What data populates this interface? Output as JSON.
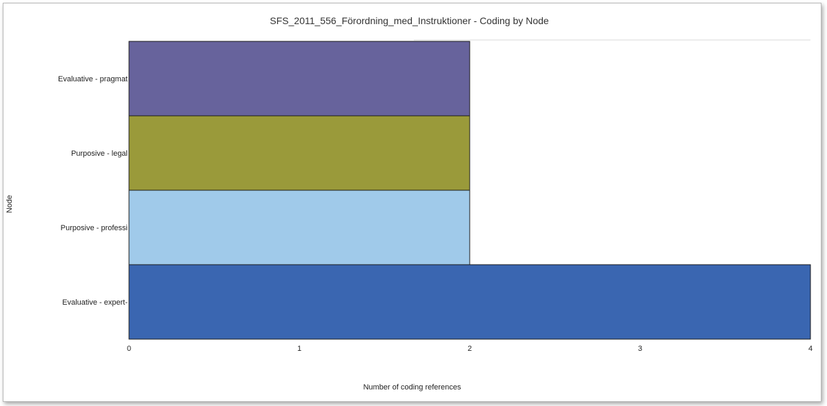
{
  "chart_data": {
    "type": "bar",
    "orientation": "horizontal",
    "title": "SFS_2011_556_Förordning_med_Instruktioner - Coding by Node",
    "xlabel": "Number of coding references",
    "ylabel": "Node",
    "categories": [
      "Evaluative - pragmat",
      "Purposive - legal",
      "Purposive - professi",
      "Evaluative - expert-"
    ],
    "values": [
      2,
      2,
      2,
      4
    ],
    "colors": [
      "#67639c",
      "#9a9a3a",
      "#a0caea",
      "#3a66b1"
    ],
    "xlim": [
      0,
      4
    ],
    "xticks": [
      "0",
      "1",
      "2",
      "3",
      "4"
    ],
    "grid": false,
    "legend": "none"
  }
}
